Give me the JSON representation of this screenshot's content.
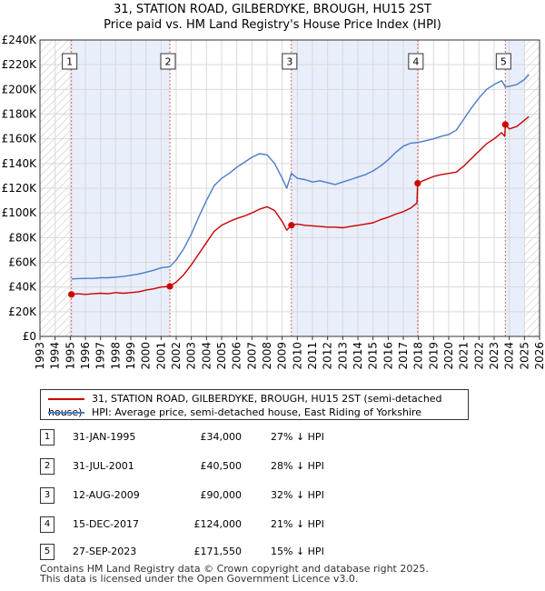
{
  "title_line1": "31, STATION ROAD, GILBERDYKE, BROUGH, HU15 2ST",
  "title_line2": "Price paid vs. HM Land Registry's House Price Index (HPI)",
  "chart_data": {
    "type": "line",
    "title": "31, STATION ROAD, GILBERDYKE, BROUGH, HU15 2ST — Price paid vs. HM Land Registry's House Price Index (HPI)",
    "xlim": [
      1993,
      2026
    ],
    "ylim": [
      0,
      240000
    ],
    "x_ticks": [
      1993,
      1994,
      1995,
      1996,
      1997,
      1998,
      1999,
      2000,
      2001,
      2002,
      2003,
      2004,
      2005,
      2006,
      2007,
      2008,
      2009,
      2010,
      2011,
      2012,
      2013,
      2014,
      2015,
      2016,
      2017,
      2018,
      2019,
      2020,
      2021,
      2022,
      2023,
      2024,
      2025,
      2026
    ],
    "y_ticks": [
      {
        "value": 0,
        "label": "£0"
      },
      {
        "value": 20000,
        "label": "£20K"
      },
      {
        "value": 40000,
        "label": "£40K"
      },
      {
        "value": 60000,
        "label": "£60K"
      },
      {
        "value": 80000,
        "label": "£80K"
      },
      {
        "value": 100000,
        "label": "£100K"
      },
      {
        "value": 120000,
        "label": "£120K"
      },
      {
        "value": 140000,
        "label": "£140K"
      },
      {
        "value": 160000,
        "label": "£160K"
      },
      {
        "value": 180000,
        "label": "£180K"
      },
      {
        "value": 200000,
        "label": "£200K"
      },
      {
        "value": 220000,
        "label": "£220K"
      },
      {
        "value": 240000,
        "label": "£240K"
      }
    ],
    "grid": true,
    "hatched_periods": [
      [
        1993,
        1995.08
      ],
      [
        2025.0,
        2026
      ]
    ],
    "shaded_periods": [
      [
        1995.08,
        2001.58
      ],
      [
        2009.61,
        2017.95
      ],
      [
        2023.74,
        2025.0
      ]
    ],
    "series": [
      {
        "name": "31, STATION ROAD, GILBERDYKE, BROUGH, HU15 2ST (semi-detached house)",
        "color": "#cc0000",
        "x": [
          1995.08,
          1995.5,
          1996,
          1996.5,
          1997,
          1997.5,
          1998,
          1998.5,
          1999,
          1999.5,
          2000,
          2000.5,
          2001,
          2001.58,
          2002,
          2002.5,
          2003,
          2003.5,
          2004,
          2004.5,
          2005,
          2005.5,
          2006,
          2006.5,
          2007,
          2007.5,
          2008,
          2008.5,
          2009,
          2009.3,
          2009.61,
          2010,
          2010.5,
          2011,
          2011.5,
          2012,
          2012.5,
          2013,
          2013.5,
          2014,
          2014.5,
          2015,
          2015.5,
          2016,
          2016.5,
          2017,
          2017.5,
          2017.9,
          2017.95,
          2018.3,
          2018.7,
          2019,
          2019.5,
          2020,
          2020.5,
          2021,
          2021.5,
          2022,
          2022.5,
          2023,
          2023.5,
          2023.7,
          2023.74,
          2024,
          2024.5,
          2025,
          2025.3
        ],
        "values": [
          34000,
          34500,
          34000,
          34500,
          35000,
          34500,
          35500,
          35000,
          35500,
          36000,
          37500,
          38500,
          40000,
          40500,
          44000,
          50000,
          58000,
          67000,
          76000,
          85000,
          90000,
          93000,
          95500,
          97500,
          100000,
          103000,
          105000,
          102000,
          93000,
          86000,
          90000,
          91000,
          90000,
          89500,
          89000,
          88500,
          88500,
          88000,
          89000,
          90000,
          91000,
          92000,
          94500,
          96500,
          99000,
          101000,
          104000,
          108000,
          124000,
          126000,
          128000,
          129500,
          131000,
          132000,
          133000,
          138000,
          144000,
          150000,
          156000,
          160000,
          165000,
          162000,
          171550,
          168000,
          170000,
          175000,
          178000
        ]
      },
      {
        "name": "HPI: Average price, semi-detached house, East Riding of Yorkshire",
        "color": "#4a7cc7",
        "x": [
          1995.08,
          1995.5,
          1996,
          1996.5,
          1997,
          1997.5,
          1998,
          1998.5,
          1999,
          1999.5,
          2000,
          2000.5,
          2001,
          2001.58,
          2002,
          2002.5,
          2003,
          2003.5,
          2004,
          2004.5,
          2005,
          2005.5,
          2006,
          2006.5,
          2007,
          2007.5,
          2008,
          2008.5,
          2009,
          2009.3,
          2009.61,
          2010,
          2010.5,
          2011,
          2011.5,
          2012,
          2012.5,
          2013,
          2013.5,
          2014,
          2014.5,
          2015,
          2015.5,
          2016,
          2016.5,
          2017,
          2017.5,
          2017.95,
          2018.5,
          2019,
          2019.5,
          2020,
          2020.5,
          2021,
          2021.5,
          2022,
          2022.5,
          2023,
          2023.5,
          2023.74,
          2024,
          2024.5,
          2025,
          2025.3
        ],
        "values": [
          46500,
          46800,
          47000,
          47000,
          47500,
          47500,
          48000,
          48500,
          49500,
          50500,
          52000,
          53500,
          55500,
          56500,
          62000,
          71000,
          83000,
          97000,
          110000,
          122000,
          128000,
          132000,
          137000,
          141000,
          145000,
          148000,
          147000,
          140000,
          128000,
          120000,
          132000,
          128000,
          127000,
          125000,
          126000,
          124500,
          123000,
          125000,
          127000,
          129000,
          131000,
          134000,
          138000,
          143000,
          149000,
          154000,
          156500,
          157000,
          158500,
          160000,
          162000,
          163500,
          167000,
          176000,
          185000,
          193000,
          200000,
          204000,
          207000,
          202000,
          202500,
          204000,
          208000,
          212000
        ]
      }
    ],
    "sales": [
      {
        "num": "1",
        "x": 1995.08,
        "value": 34000
      },
      {
        "num": "2",
        "x": 2001.58,
        "value": 40500
      },
      {
        "num": "3",
        "x": 2009.61,
        "value": 90000
      },
      {
        "num": "4",
        "x": 2017.95,
        "value": 124000
      },
      {
        "num": "5",
        "x": 2023.74,
        "value": 171550
      }
    ]
  },
  "legend": {
    "items": [
      {
        "label": "31, STATION ROAD, GILBERDYKE, BROUGH, HU15 2ST (semi-detached house)",
        "color": "#cc0000"
      },
      {
        "label": "HPI: Average price, semi-detached house, East Riding of Yorkshire",
        "color": "#4a7cc7"
      }
    ]
  },
  "sales_table": [
    {
      "num": "1",
      "date": "31-JAN-1995",
      "price": "£34,000",
      "hpi": "27% ↓ HPI"
    },
    {
      "num": "2",
      "date": "31-JUL-2001",
      "price": "£40,500",
      "hpi": "28% ↓ HPI"
    },
    {
      "num": "3",
      "date": "12-AUG-2009",
      "price": "£90,000",
      "hpi": "32% ↓ HPI"
    },
    {
      "num": "4",
      "date": "15-DEC-2017",
      "price": "£124,000",
      "hpi": "21% ↓ HPI"
    },
    {
      "num": "5",
      "date": "27-SEP-2023",
      "price": "£171,550",
      "hpi": "15% ↓ HPI"
    }
  ],
  "footer": {
    "line1": "Contains HM Land Registry data © Crown copyright and database right 2025.",
    "line2": "This data is licensed under the Open Government Licence v3.0."
  }
}
